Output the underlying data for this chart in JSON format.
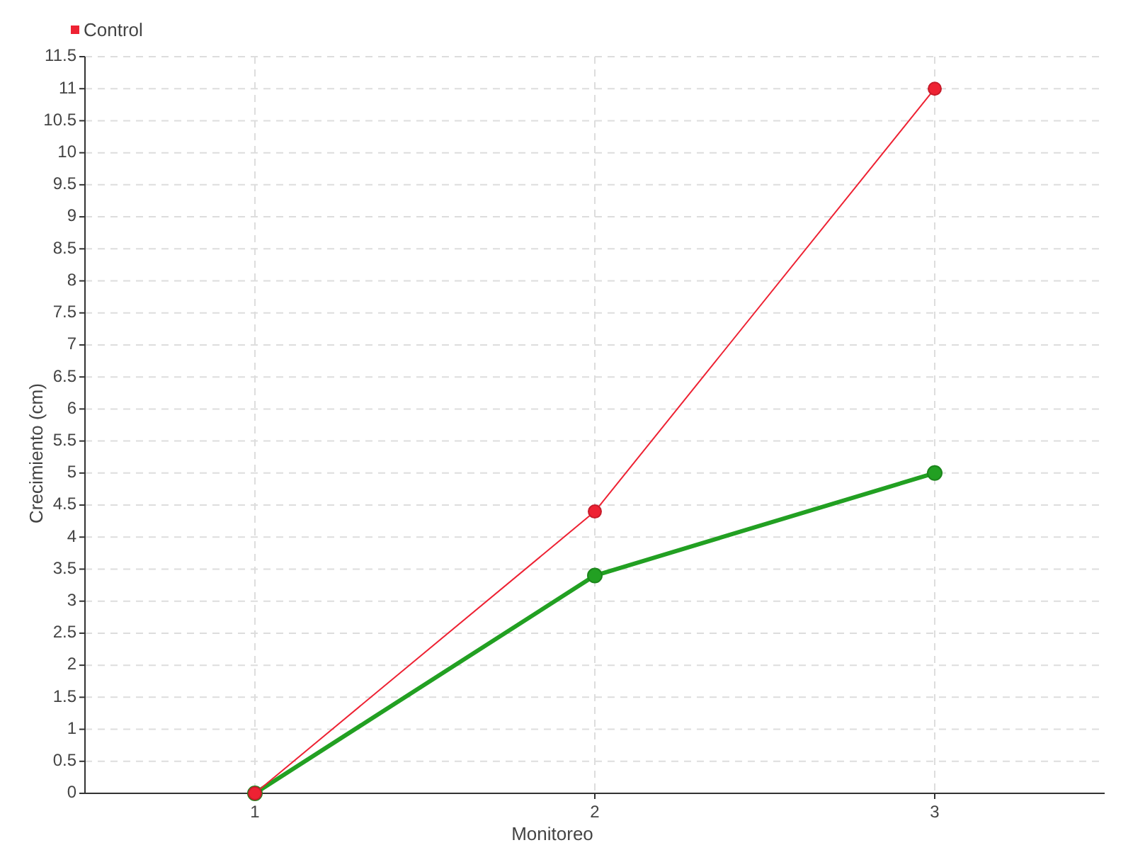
{
  "chart_data": {
    "type": "line",
    "xlabel": "Monitoreo",
    "ylabel": "Crecimiento (cm)",
    "x": [
      1,
      2,
      3
    ],
    "xlim": [
      0.5,
      3.5
    ],
    "xticks": [
      1,
      2,
      3
    ],
    "ylim": [
      0,
      11.5
    ],
    "yticks": [
      0,
      0.5,
      1,
      1.5,
      2,
      2.5,
      3,
      3.5,
      4,
      4.5,
      5,
      5.5,
      6,
      6.5,
      7,
      7.5,
      8,
      8.5,
      9,
      9.5,
      10,
      10.5,
      11,
      11.5
    ],
    "grid": true,
    "legend": "top left",
    "marker": "circle",
    "series": [
      {
        "color": "#22a022",
        "values": [
          0,
          3.4,
          5.0
        ]
      },
      {
        "name": "Control",
        "color": "#ee2233",
        "values": [
          0,
          4.4,
          11
        ]
      }
    ]
  }
}
